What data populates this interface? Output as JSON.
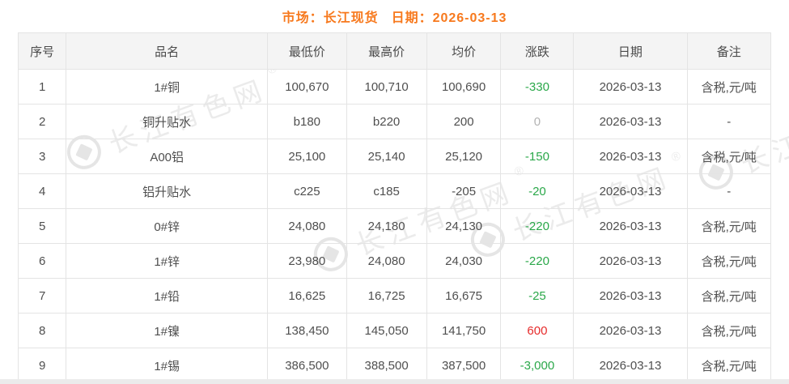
{
  "header": {
    "market": "市场：长江现货",
    "date": "日期：2026-03-13"
  },
  "table": {
    "columns": [
      "序号",
      "品名",
      "最低价",
      "最高价",
      "均价",
      "涨跌",
      "日期",
      "备注"
    ],
    "rows": [
      {
        "no": "1",
        "name": "1#铜",
        "low": "100,670",
        "high": "100,710",
        "avg": "100,690",
        "change": "-330",
        "change_dir": "down",
        "date": "2026-03-13",
        "note": "含税,元/吨"
      },
      {
        "no": "2",
        "name": "铜升贴水",
        "low": "b180",
        "high": "b220",
        "avg": "200",
        "change": "0",
        "change_dir": "flat",
        "date": "2026-03-13",
        "note": "-"
      },
      {
        "no": "3",
        "name": "A00铝",
        "low": "25,100",
        "high": "25,140",
        "avg": "25,120",
        "change": "-150",
        "change_dir": "down",
        "date": "2026-03-13",
        "note": "含税,元/吨"
      },
      {
        "no": "4",
        "name": "铝升贴水",
        "low": "c225",
        "high": "c185",
        "avg": "-205",
        "change": "-20",
        "change_dir": "down",
        "date": "2026-03-13",
        "note": "-"
      },
      {
        "no": "5",
        "name": "0#锌",
        "low": "24,080",
        "high": "24,180",
        "avg": "24,130",
        "change": "-220",
        "change_dir": "down",
        "date": "2026-03-13",
        "note": "含税,元/吨"
      },
      {
        "no": "6",
        "name": "1#锌",
        "low": "23,980",
        "high": "24,080",
        "avg": "24,030",
        "change": "-220",
        "change_dir": "down",
        "date": "2026-03-13",
        "note": "含税,元/吨"
      },
      {
        "no": "7",
        "name": "1#铅",
        "low": "16,625",
        "high": "16,725",
        "avg": "16,675",
        "change": "-25",
        "change_dir": "down",
        "date": "2026-03-13",
        "note": "含税,元/吨"
      },
      {
        "no": "8",
        "name": "1#镍",
        "low": "138,450",
        "high": "145,050",
        "avg": "141,750",
        "change": "600",
        "change_dir": "up",
        "date": "2026-03-13",
        "note": "含税,元/吨"
      },
      {
        "no": "9",
        "name": "1#锡",
        "low": "386,500",
        "high": "388,500",
        "avg": "387,500",
        "change": "-3,000",
        "change_dir": "down",
        "date": "2026-03-13",
        "note": "含税,元/吨"
      }
    ]
  },
  "watermark": {
    "text": "长江有色网",
    "reg": "®"
  },
  "colors": {
    "accent_orange": "#f7791d",
    "change_down_green": "#2ba84a",
    "change_up_red": "#e62b2b",
    "change_flat_gray": "#b3b3b3",
    "header_bg": "#f4f4f4",
    "border": "#e4e4e4"
  }
}
